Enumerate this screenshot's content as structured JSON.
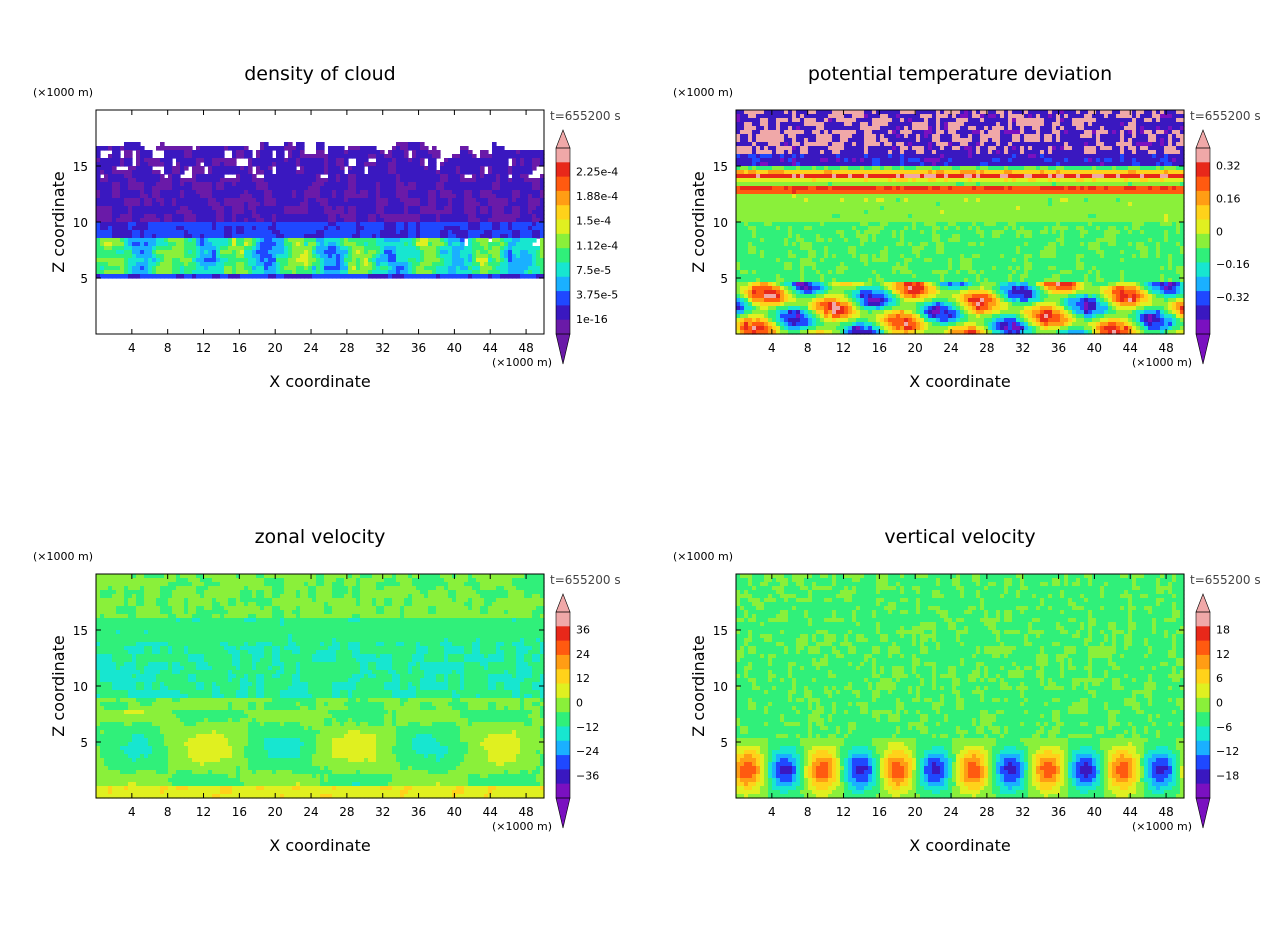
{
  "figure": {
    "x_unit_label": "(×1000 m)",
    "z_unit_label": "(×1000 m)",
    "time_label": "t=655200 s",
    "xlabel": "X coordinate",
    "ylabel": "Z coordinate",
    "x_ticks": [
      "4",
      "8",
      "12",
      "16",
      "20",
      "24",
      "28",
      "32",
      "36",
      "40",
      "44",
      "48"
    ],
    "y_ticks": [
      "5",
      "10",
      "15"
    ]
  },
  "chart_data": [
    {
      "type": "heatmap",
      "title": "density of cloud",
      "xlabel": "X coordinate",
      "ylabel": "Z coordinate",
      "x_unit": "(×1000 m)",
      "y_unit": "(×1000 m)",
      "time": "t=655200 s",
      "xlim": [
        0,
        50
      ],
      "ylim": [
        0,
        20
      ],
      "colorbar_labels": [
        "2.25e-4",
        "1.88e-4",
        "1.5e-4",
        "1.12e-4",
        "7.5e-5",
        "3.75e-5",
        "1e-16"
      ],
      "pattern": "cloud",
      "colors": [
        "#6a1aa8",
        "#3a18c0",
        "#1f48ff",
        "#1ab0ff",
        "#17e6d0",
        "#30f07a",
        "#8af03a",
        "#e0f020",
        "#ffd21a",
        "#ff9d14",
        "#ff5a10",
        "#e8281a",
        "#f0a8a8"
      ]
    },
    {
      "type": "heatmap",
      "title": "potential temperature deviation",
      "xlabel": "X coordinate",
      "ylabel": "Z coordinate",
      "x_unit": "(×1000 m)",
      "y_unit": "(×1000 m)",
      "time": "t=655200 s",
      "xlim": [
        0,
        50
      ],
      "ylim": [
        0,
        20
      ],
      "colorbar_labels": [
        "0.32",
        "0.16",
        "0",
        "−0.16",
        "−0.32"
      ],
      "pattern": "theta",
      "colors": [
        "#7a10c0",
        "#3a18c0",
        "#1f48ff",
        "#1ab0ff",
        "#17e6d0",
        "#30f07a",
        "#8af03a",
        "#e0f020",
        "#ffd21a",
        "#ff9d14",
        "#ff5a10",
        "#e8281a",
        "#f0a8a8"
      ]
    },
    {
      "type": "heatmap",
      "title": "zonal velocity",
      "xlabel": "X coordinate",
      "ylabel": "Z coordinate",
      "x_unit": "(×1000 m)",
      "y_unit": "(×1000 m)",
      "time": "t=655200 s",
      "xlim": [
        0,
        50
      ],
      "ylim": [
        0,
        20
      ],
      "colorbar_labels": [
        "36",
        "24",
        "12",
        "0",
        "−12",
        "−24",
        "−36"
      ],
      "pattern": "zonal",
      "colors": [
        "#7a10c0",
        "#3a18c0",
        "#1f48ff",
        "#1ab0ff",
        "#17e6d0",
        "#30f07a",
        "#8af03a",
        "#e0f020",
        "#ffd21a",
        "#ff9d14",
        "#ff5a10",
        "#e8281a",
        "#f0a8a8"
      ]
    },
    {
      "type": "heatmap",
      "title": "vertical velocity",
      "xlabel": "X coordinate",
      "ylabel": "Z coordinate",
      "x_unit": "(×1000 m)",
      "y_unit": "(×1000 m)",
      "time": "t=655200 s",
      "xlim": [
        0,
        50
      ],
      "ylim": [
        0,
        20
      ],
      "colorbar_labels": [
        "18",
        "12",
        "6",
        "0",
        "−6",
        "−12",
        "−18"
      ],
      "pattern": "vertical",
      "colors": [
        "#7a10c0",
        "#3a18c0",
        "#1f48ff",
        "#1ab0ff",
        "#17e6d0",
        "#30f07a",
        "#8af03a",
        "#e0f020",
        "#ffd21a",
        "#ff9d14",
        "#ff5a10",
        "#e8281a",
        "#f0a8a8"
      ]
    }
  ]
}
